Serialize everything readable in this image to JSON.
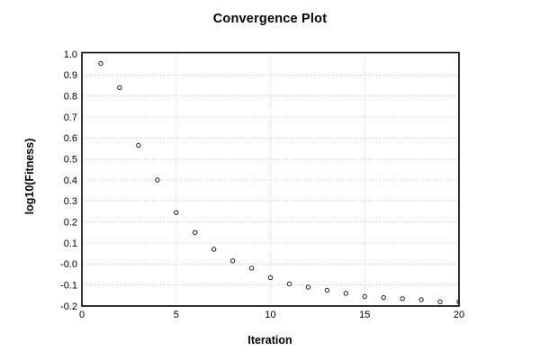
{
  "chart_data": {
    "type": "scatter",
    "title": "Convergence Plot",
    "xlabel": "Iteration",
    "ylabel": "log10(Fitness)",
    "xlim": [
      0,
      20
    ],
    "ylim": [
      -0.2,
      1.0
    ],
    "grid": true,
    "grid_style": "dotted",
    "legend": "none",
    "marker": "open-circle",
    "x_tick_labels": [
      "0",
      "5",
      "10",
      "15",
      "20"
    ],
    "y_tick_labels": [
      "1.0",
      "0.9",
      "0.8",
      "0.7",
      "0.6",
      "0.5",
      "0.4",
      "0.3",
      "0.2",
      "0.1",
      "-0.0",
      "-0.1",
      "-0.2"
    ],
    "x": [
      1,
      2,
      3,
      4,
      5,
      6,
      7,
      8,
      9,
      10,
      11,
      12,
      13,
      14,
      15,
      16,
      17,
      18,
      19,
      20
    ],
    "y": [
      0.955,
      0.84,
      0.565,
      0.4,
      0.245,
      0.15,
      0.07,
      0.015,
      -0.02,
      -0.065,
      -0.095,
      -0.11,
      -0.125,
      -0.14,
      -0.155,
      -0.16,
      -0.165,
      -0.17,
      -0.18,
      -0.18
    ],
    "colors": {
      "marker_stroke": "#1c1c1c",
      "marker_fill": "#ffffff",
      "gridline": "#c8c8c8",
      "axis_border": "#000000",
      "text": "#000000",
      "background": "#ffffff"
    }
  }
}
